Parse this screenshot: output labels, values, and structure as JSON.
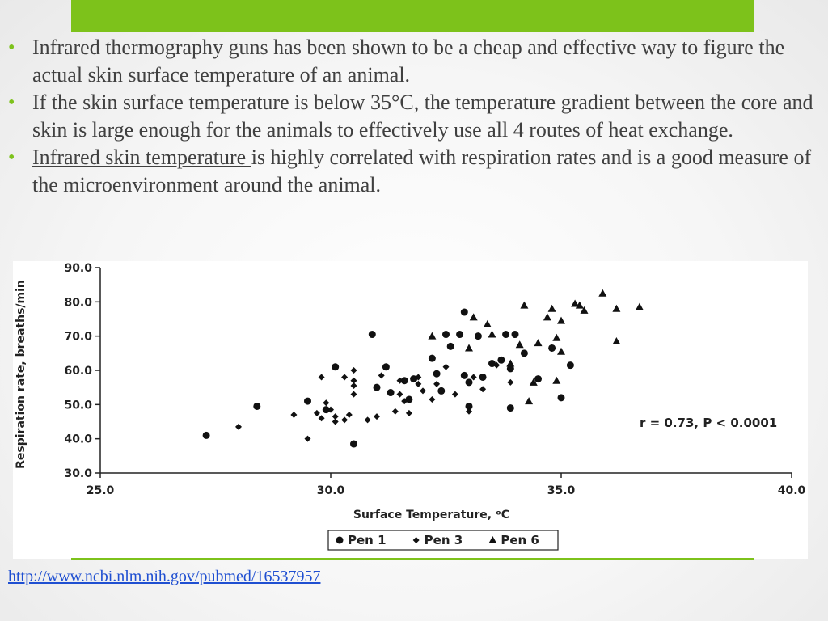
{
  "slide": {
    "bullets": [
      {
        "text": "Infrared thermography guns has been shown to be a cheap and effective way to figure the actual skin surface temperature of an animal."
      },
      {
        "text": "If the skin surface temperature is below 35°C, the temperature gradient between the core and skin is large enough for the animals to effectively use all 4 routes of heat exchange."
      },
      {
        "underlined": "Infrared skin temperature ",
        "text": "is highly correlated with respiration rates and is a good measure of the microenvironment around the animal."
      }
    ],
    "source_link": "http://www.ncbi.nlm.nih.gov/pubmed/16537957",
    "accent_color": "#7dc21b",
    "bullet_symbol": "•"
  },
  "chart_data": {
    "type": "scatter",
    "xlabel": "Surface Temperature, ᵒC",
    "ylabel": "Respiration rate, breaths/min",
    "xlim": [
      25.0,
      40.0
    ],
    "ylim": [
      30.0,
      90.0
    ],
    "x_ticks": [
      "25.0",
      "30.0",
      "35.0",
      "40.0"
    ],
    "y_ticks": [
      "30.0",
      "40.0",
      "50.0",
      "60.0",
      "70.0",
      "80.0",
      "90.0"
    ],
    "annotation": "r = 0.73, P < 0.0001",
    "grid": false,
    "legend_position": "bottom-center",
    "series": [
      {
        "name": "Pen 1",
        "marker": "circle",
        "points": [
          [
            27.3,
            41
          ],
          [
            28.4,
            49.5
          ],
          [
            29.5,
            51
          ],
          [
            29.9,
            48.5
          ],
          [
            30.1,
            61
          ],
          [
            30.5,
            38.5
          ],
          [
            30.9,
            70.5
          ],
          [
            31.0,
            55
          ],
          [
            31.2,
            61
          ],
          [
            31.3,
            53.5
          ],
          [
            31.6,
            57
          ],
          [
            31.7,
            51.5
          ],
          [
            31.8,
            57.5
          ],
          [
            32.2,
            63.5
          ],
          [
            32.3,
            59
          ],
          [
            32.4,
            54
          ],
          [
            32.5,
            70.5
          ],
          [
            32.6,
            67
          ],
          [
            32.8,
            70.5
          ],
          [
            32.9,
            77
          ],
          [
            32.9,
            58.5
          ],
          [
            33.0,
            56.5
          ],
          [
            33.0,
            49.5
          ],
          [
            33.2,
            70
          ],
          [
            33.3,
            58
          ],
          [
            33.5,
            62
          ],
          [
            33.7,
            63
          ],
          [
            33.8,
            70.5
          ],
          [
            33.9,
            49
          ],
          [
            33.9,
            60.5
          ],
          [
            34.0,
            70.5
          ],
          [
            34.2,
            65
          ],
          [
            34.5,
            57.5
          ],
          [
            34.8,
            66.5
          ],
          [
            35.0,
            52
          ],
          [
            35.2,
            61.5
          ]
        ]
      },
      {
        "name": "Pen 3",
        "marker": "diamond",
        "points": [
          [
            28.0,
            43.5
          ],
          [
            29.2,
            47
          ],
          [
            29.5,
            40
          ],
          [
            29.7,
            47.5
          ],
          [
            29.8,
            58
          ],
          [
            29.8,
            46
          ],
          [
            29.9,
            50.5
          ],
          [
            30.0,
            48.5
          ],
          [
            30.1,
            46.5
          ],
          [
            30.1,
            45
          ],
          [
            30.3,
            45.5
          ],
          [
            30.3,
            58
          ],
          [
            30.4,
            47
          ],
          [
            30.5,
            55.5
          ],
          [
            30.5,
            57
          ],
          [
            30.5,
            60
          ],
          [
            30.5,
            53
          ],
          [
            30.8,
            45.5
          ],
          [
            31.0,
            46.5
          ],
          [
            31.1,
            58.5
          ],
          [
            31.4,
            48
          ],
          [
            31.5,
            57
          ],
          [
            31.5,
            53
          ],
          [
            31.6,
            51
          ],
          [
            31.7,
            47.5
          ],
          [
            31.9,
            58
          ],
          [
            31.9,
            56
          ],
          [
            32.0,
            54
          ],
          [
            32.2,
            51.5
          ],
          [
            32.3,
            56
          ],
          [
            32.5,
            61
          ],
          [
            32.7,
            53
          ],
          [
            33.0,
            48
          ],
          [
            33.1,
            58
          ],
          [
            33.3,
            54.5
          ],
          [
            33.6,
            61.5
          ],
          [
            33.9,
            56.5
          ]
        ]
      },
      {
        "name": "Pen 6",
        "marker": "triangle",
        "points": [
          [
            32.2,
            70
          ],
          [
            33.0,
            66.5
          ],
          [
            33.1,
            75.5
          ],
          [
            33.4,
            73.5
          ],
          [
            33.5,
            70.5
          ],
          [
            33.9,
            62
          ],
          [
            34.1,
            67.5
          ],
          [
            34.2,
            79
          ],
          [
            34.3,
            51
          ],
          [
            34.4,
            56.5
          ],
          [
            34.5,
            68
          ],
          [
            34.7,
            75.5
          ],
          [
            34.8,
            78
          ],
          [
            34.9,
            69.5
          ],
          [
            34.9,
            57
          ],
          [
            35.0,
            65.5
          ],
          [
            35.0,
            74.5
          ],
          [
            35.3,
            79.5
          ],
          [
            35.4,
            79
          ],
          [
            35.5,
            77.5
          ],
          [
            35.9,
            82.5
          ],
          [
            36.2,
            78
          ],
          [
            36.2,
            68.5
          ],
          [
            36.7,
            78.5
          ]
        ]
      }
    ]
  }
}
